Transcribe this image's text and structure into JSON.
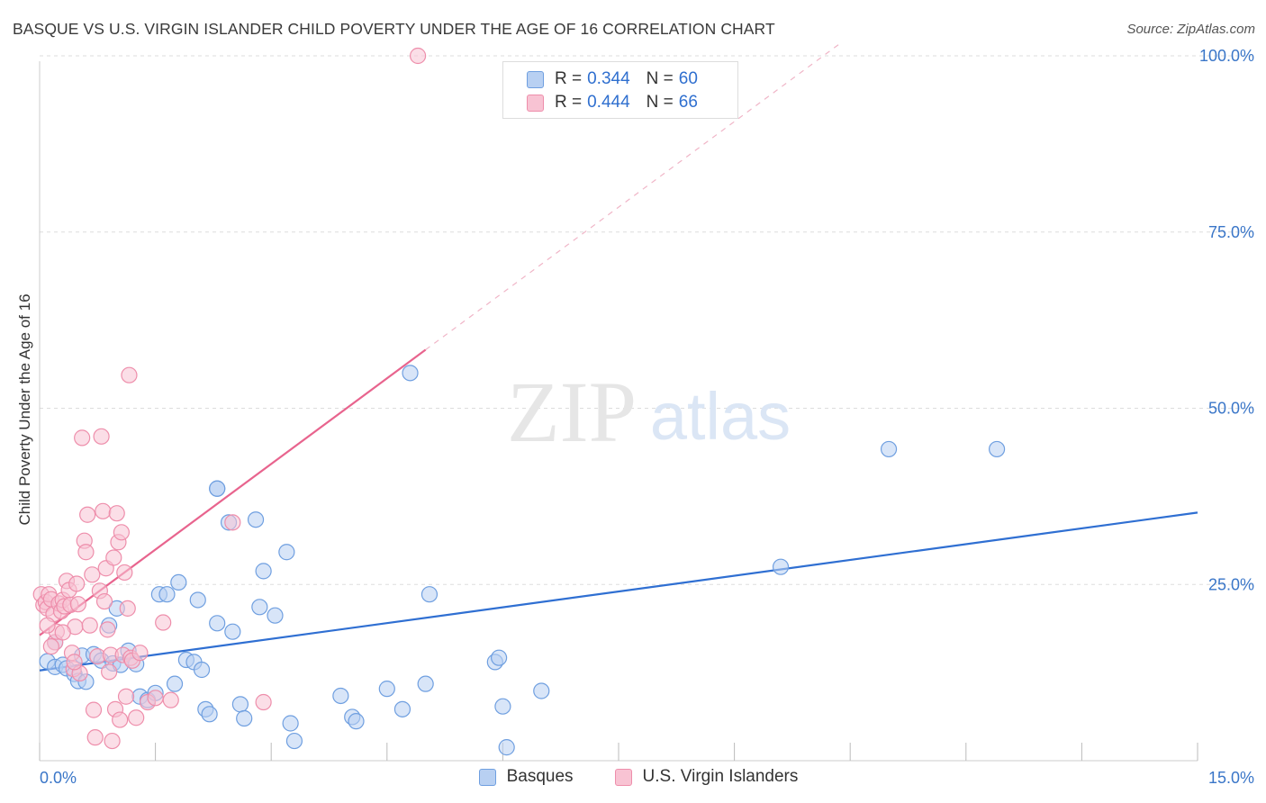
{
  "header": {
    "title": "BASQUE VS U.S. VIRGIN ISLANDER CHILD POVERTY UNDER THE AGE OF 16 CORRELATION CHART",
    "source": "Source: ZipAtlas.com"
  },
  "watermark": {
    "zip": "ZIP",
    "atlas": "atlas"
  },
  "legend": {
    "rows": [
      {
        "r_label": "R =",
        "r_value": "0.344",
        "n_label": "N =",
        "n_value": "60"
      },
      {
        "r_label": "R =",
        "r_value": "0.444",
        "n_label": "N =",
        "n_value": "66"
      }
    ]
  },
  "bottom_legend": {
    "series1": "Basques",
    "series2": "U.S. Virgin Islanders"
  },
  "colors": {
    "blue_fill": "#b8d0f2",
    "blue_stroke": "#6f9fe0",
    "blue_line": "#2f6fd2",
    "pink_fill": "#f8c3d3",
    "pink_stroke": "#ee8eab",
    "pink_line": "#e8648e",
    "tick_text": "#3a76c8",
    "grid": "#dddddd"
  },
  "chart_data": {
    "type": "scatter",
    "title": "BASQUE VS U.S. VIRGIN ISLANDER CHILD POVERTY UNDER THE AGE OF 16 CORRELATION CHART",
    "xlabel": "",
    "ylabel": "Child Poverty Under the Age of 16",
    "xlim": [
      0,
      15
    ],
    "ylim": [
      0,
      100
    ],
    "x_tick_labels": [
      "0.0%",
      "15.0%"
    ],
    "y_ticks": [
      25,
      50,
      75,
      100
    ],
    "y_tick_labels": [
      "25.0%",
      "50.0%",
      "75.0%",
      "100.0%"
    ],
    "grid": "horizontal dashed",
    "legend_position": "top-center",
    "series": [
      {
        "name": "Basques",
        "R": 0.344,
        "N": 60,
        "trend": {
          "x": [
            0,
            15
          ],
          "y": [
            12.8,
            35.2
          ],
          "style": "solid"
        },
        "points": [
          [
            0.1,
            14.1
          ],
          [
            0.2,
            13.3
          ],
          [
            0.3,
            13.6
          ],
          [
            0.35,
            13.1
          ],
          [
            0.45,
            12.3
          ],
          [
            0.5,
            11.3
          ],
          [
            0.6,
            11.2
          ],
          [
            0.55,
            14.9
          ],
          [
            0.7,
            15.1
          ],
          [
            0.8,
            14.2
          ],
          [
            0.9,
            19.2
          ],
          [
            0.95,
            13.8
          ],
          [
            1.05,
            13.6
          ],
          [
            1.15,
            15.6
          ],
          [
            1.25,
            13.7
          ],
          [
            1.3,
            9.1
          ],
          [
            1.4,
            8.6
          ],
          [
            1.5,
            9.6
          ],
          [
            1.55,
            23.6
          ],
          [
            1.65,
            23.6
          ],
          [
            1.75,
            10.9
          ],
          [
            1.8,
            25.3
          ],
          [
            1.9,
            14.3
          ],
          [
            2.0,
            14.0
          ],
          [
            2.05,
            22.8
          ],
          [
            2.1,
            12.9
          ],
          [
            2.15,
            7.3
          ],
          [
            2.2,
            6.6
          ],
          [
            2.3,
            38.6
          ],
          [
            2.3,
            38.6
          ],
          [
            2.3,
            19.5
          ],
          [
            2.45,
            33.8
          ],
          [
            2.5,
            18.3
          ],
          [
            2.6,
            8.0
          ],
          [
            2.65,
            6.0
          ],
          [
            2.8,
            34.2
          ],
          [
            2.85,
            21.8
          ],
          [
            2.9,
            26.9
          ],
          [
            3.05,
            20.6
          ],
          [
            3.2,
            29.6
          ],
          [
            3.25,
            5.3
          ],
          [
            3.3,
            2.8
          ],
          [
            3.9,
            9.2
          ],
          [
            4.05,
            6.2
          ],
          [
            4.1,
            5.6
          ],
          [
            4.5,
            10.2
          ],
          [
            4.7,
            7.3
          ],
          [
            4.8,
            55.0
          ],
          [
            5.0,
            10.9
          ],
          [
            5.05,
            23.6
          ],
          [
            5.9,
            14.0
          ],
          [
            5.95,
            14.6
          ],
          [
            6.0,
            7.7
          ],
          [
            6.05,
            1.9
          ],
          [
            6.5,
            9.9
          ],
          [
            9.6,
            27.5
          ],
          [
            11.0,
            44.2
          ],
          [
            12.4,
            44.2
          ],
          [
            0.2,
            16.8
          ],
          [
            1.0,
            21.6
          ]
        ]
      },
      {
        "name": "U.S. Virgin Islanders",
        "R": 0.444,
        "N": 66,
        "trend": {
          "x": [
            0,
            5
          ],
          "y": [
            17.8,
            58.3
          ],
          "style": "solid",
          "extended_x": [
            5,
            10.4
          ],
          "extended_y": [
            58.3,
            102
          ],
          "extended_style": "dashed"
        },
        "points": [
          [
            0.02,
            23.6
          ],
          [
            0.05,
            22.1
          ],
          [
            0.08,
            22.5
          ],
          [
            0.1,
            21.6
          ],
          [
            0.12,
            23.6
          ],
          [
            0.15,
            22.9
          ],
          [
            0.18,
            20.8
          ],
          [
            0.2,
            16.8
          ],
          [
            0.22,
            18.3
          ],
          [
            0.25,
            22.3
          ],
          [
            0.28,
            21.2
          ],
          [
            0.3,
            22.8
          ],
          [
            0.32,
            21.9
          ],
          [
            0.35,
            25.5
          ],
          [
            0.38,
            24.2
          ],
          [
            0.4,
            22.1
          ],
          [
            0.42,
            15.3
          ],
          [
            0.44,
            13.0
          ],
          [
            0.46,
            19.0
          ],
          [
            0.48,
            25.1
          ],
          [
            0.5,
            22.2
          ],
          [
            0.52,
            12.4
          ],
          [
            0.55,
            45.8
          ],
          [
            0.58,
            31.2
          ],
          [
            0.6,
            29.6
          ],
          [
            0.62,
            34.9
          ],
          [
            0.65,
            19.2
          ],
          [
            0.68,
            26.4
          ],
          [
            0.7,
            7.2
          ],
          [
            0.72,
            3.3
          ],
          [
            0.75,
            14.8
          ],
          [
            0.78,
            24.1
          ],
          [
            0.8,
            46.0
          ],
          [
            0.82,
            35.4
          ],
          [
            0.84,
            22.6
          ],
          [
            0.86,
            27.3
          ],
          [
            0.88,
            18.6
          ],
          [
            0.9,
            12.6
          ],
          [
            0.92,
            15.0
          ],
          [
            0.94,
            2.8
          ],
          [
            0.96,
            28.8
          ],
          [
            0.98,
            7.3
          ],
          [
            1.0,
            35.1
          ],
          [
            1.02,
            31.0
          ],
          [
            1.04,
            5.8
          ],
          [
            1.06,
            32.4
          ],
          [
            1.08,
            15.0
          ],
          [
            1.1,
            26.7
          ],
          [
            1.12,
            9.1
          ],
          [
            1.14,
            21.6
          ],
          [
            1.16,
            54.7
          ],
          [
            1.18,
            14.6
          ],
          [
            1.2,
            14.2
          ],
          [
            1.25,
            6.1
          ],
          [
            1.3,
            15.3
          ],
          [
            1.4,
            8.3
          ],
          [
            1.5,
            8.9
          ],
          [
            1.6,
            19.6
          ],
          [
            1.7,
            8.6
          ],
          [
            2.5,
            33.8
          ],
          [
            2.9,
            8.3
          ],
          [
            4.9,
            100
          ],
          [
            0.1,
            19.2
          ],
          [
            0.3,
            18.2
          ],
          [
            0.15,
            16.2
          ],
          [
            0.45,
            14.0
          ]
        ]
      }
    ]
  }
}
